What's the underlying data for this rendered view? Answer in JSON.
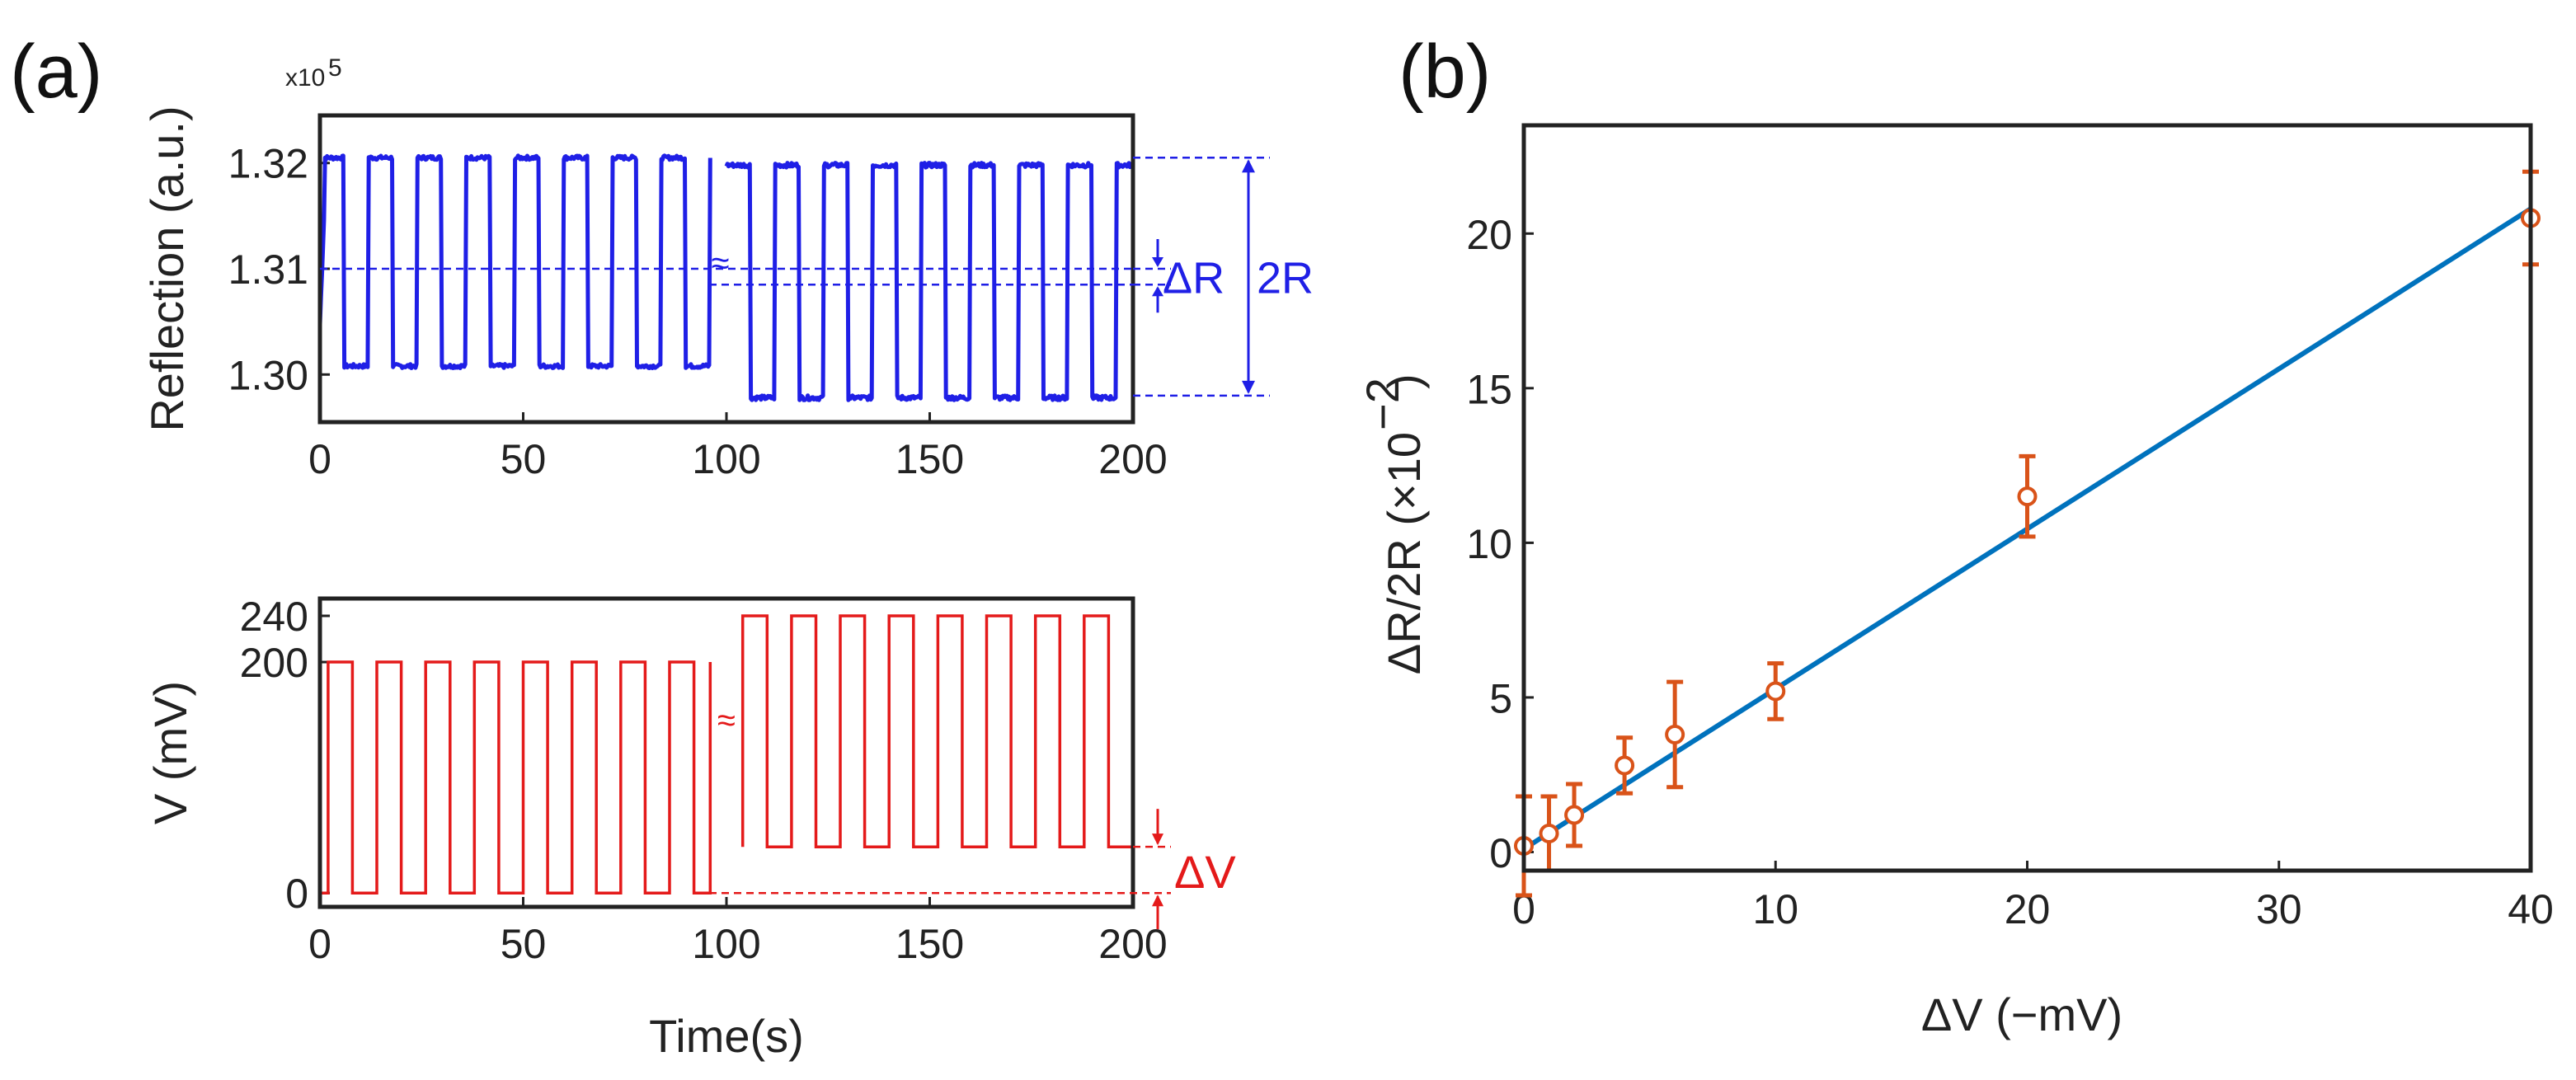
{
  "figure": {
    "panel_a_label": "(a)",
    "panel_b_label": "(b)"
  },
  "chart_data": [
    {
      "id": "a-top",
      "type": "line",
      "ylabel": "Reflection (a.u.)",
      "y_multiplier": "x10",
      "y_multiplier_exp": "5",
      "xlim": [
        0,
        200
      ],
      "ylim": [
        1.2955,
        1.3245
      ],
      "x_ticks": [
        0,
        50,
        100,
        150,
        200
      ],
      "x_tick_labels": [
        "0",
        "50",
        "100",
        "150",
        "200"
      ],
      "y_ticks": [
        1.3,
        1.31,
        1.32
      ],
      "y_tick_labels": [
        "1.30",
        "1.31",
        "1.32"
      ],
      "color": "#1f1fe6",
      "segments": [
        {
          "t_start": 0,
          "t_end": 96,
          "period": 12,
          "high": 1.3205,
          "low": 1.3008,
          "start_phase": "rise"
        },
        {
          "t_start": 100,
          "t_end": 200,
          "period": 12,
          "high": 1.3198,
          "low": 1.2978,
          "start_phase": "high"
        }
      ],
      "break_marker": "≈",
      "annotations": [
        {
          "text": "ΔR",
          "color": "#1f1fe6"
        },
        {
          "text": "2R",
          "color": "#1f1fe6"
        }
      ],
      "ref_levels": {
        "top": 1.3205,
        "mid": 1.31,
        "mid2": 1.3085,
        "bottom": 1.298
      }
    },
    {
      "id": "a-bottom",
      "type": "line",
      "xlabel": "Time(s)",
      "ylabel": "V (mV)",
      "xlim": [
        0,
        200
      ],
      "ylim": [
        -12,
        255
      ],
      "x_ticks": [
        0,
        50,
        100,
        150,
        200
      ],
      "x_tick_labels": [
        "0",
        "50",
        "100",
        "150",
        "200"
      ],
      "y_ticks": [
        0,
        200,
        240
      ],
      "y_tick_labels": [
        "0",
        "200",
        "240"
      ],
      "color": "#e41a1a",
      "segments": [
        {
          "t_start": 0,
          "t_end": 96,
          "period": 12,
          "high": 200,
          "low": 0
        },
        {
          "t_start": 104,
          "t_end": 200,
          "period": 12,
          "high": 240,
          "low": 40
        }
      ],
      "break_marker": "≈",
      "annotations": [
        {
          "text": "ΔV",
          "color": "#e41a1a"
        }
      ],
      "ref_levels": {
        "upper": 40,
        "lower": 0
      }
    },
    {
      "id": "b",
      "type": "scatter",
      "xlabel": "ΔV (−mV)",
      "ylabel_main": "ΔR/2R (×10",
      "ylabel_exp": "−2",
      "ylabel_close": ")",
      "xlim": [
        0,
        40
      ],
      "ylim": [
        -0.6,
        23.5
      ],
      "x_ticks": [
        0,
        10,
        20,
        30,
        40
      ],
      "x_tick_labels": [
        "0",
        "10",
        "20",
        "30",
        "40"
      ],
      "y_ticks": [
        0,
        5,
        10,
        15,
        20
      ],
      "y_tick_labels": [
        "0",
        "5",
        "10",
        "15",
        "20"
      ],
      "points": [
        {
          "x": 0,
          "y": 0.2,
          "err": 1.6
        },
        {
          "x": 1,
          "y": 0.6,
          "err": 1.2
        },
        {
          "x": 2,
          "y": 1.2,
          "err": 1.0
        },
        {
          "x": 4,
          "y": 2.8,
          "err": 0.9
        },
        {
          "x": 6,
          "y": 3.8,
          "err": 1.7
        },
        {
          "x": 10,
          "y": 5.2,
          "err": 0.9
        },
        {
          "x": 20,
          "y": 11.5,
          "err": 1.3
        },
        {
          "x": 40,
          "y": 20.5,
          "err": 1.5
        }
      ],
      "fit_line": {
        "x": [
          0,
          40
        ],
        "y": [
          0.1,
          20.8
        ]
      },
      "marker_color": "#d95319",
      "line_color": "#0072bd"
    }
  ]
}
